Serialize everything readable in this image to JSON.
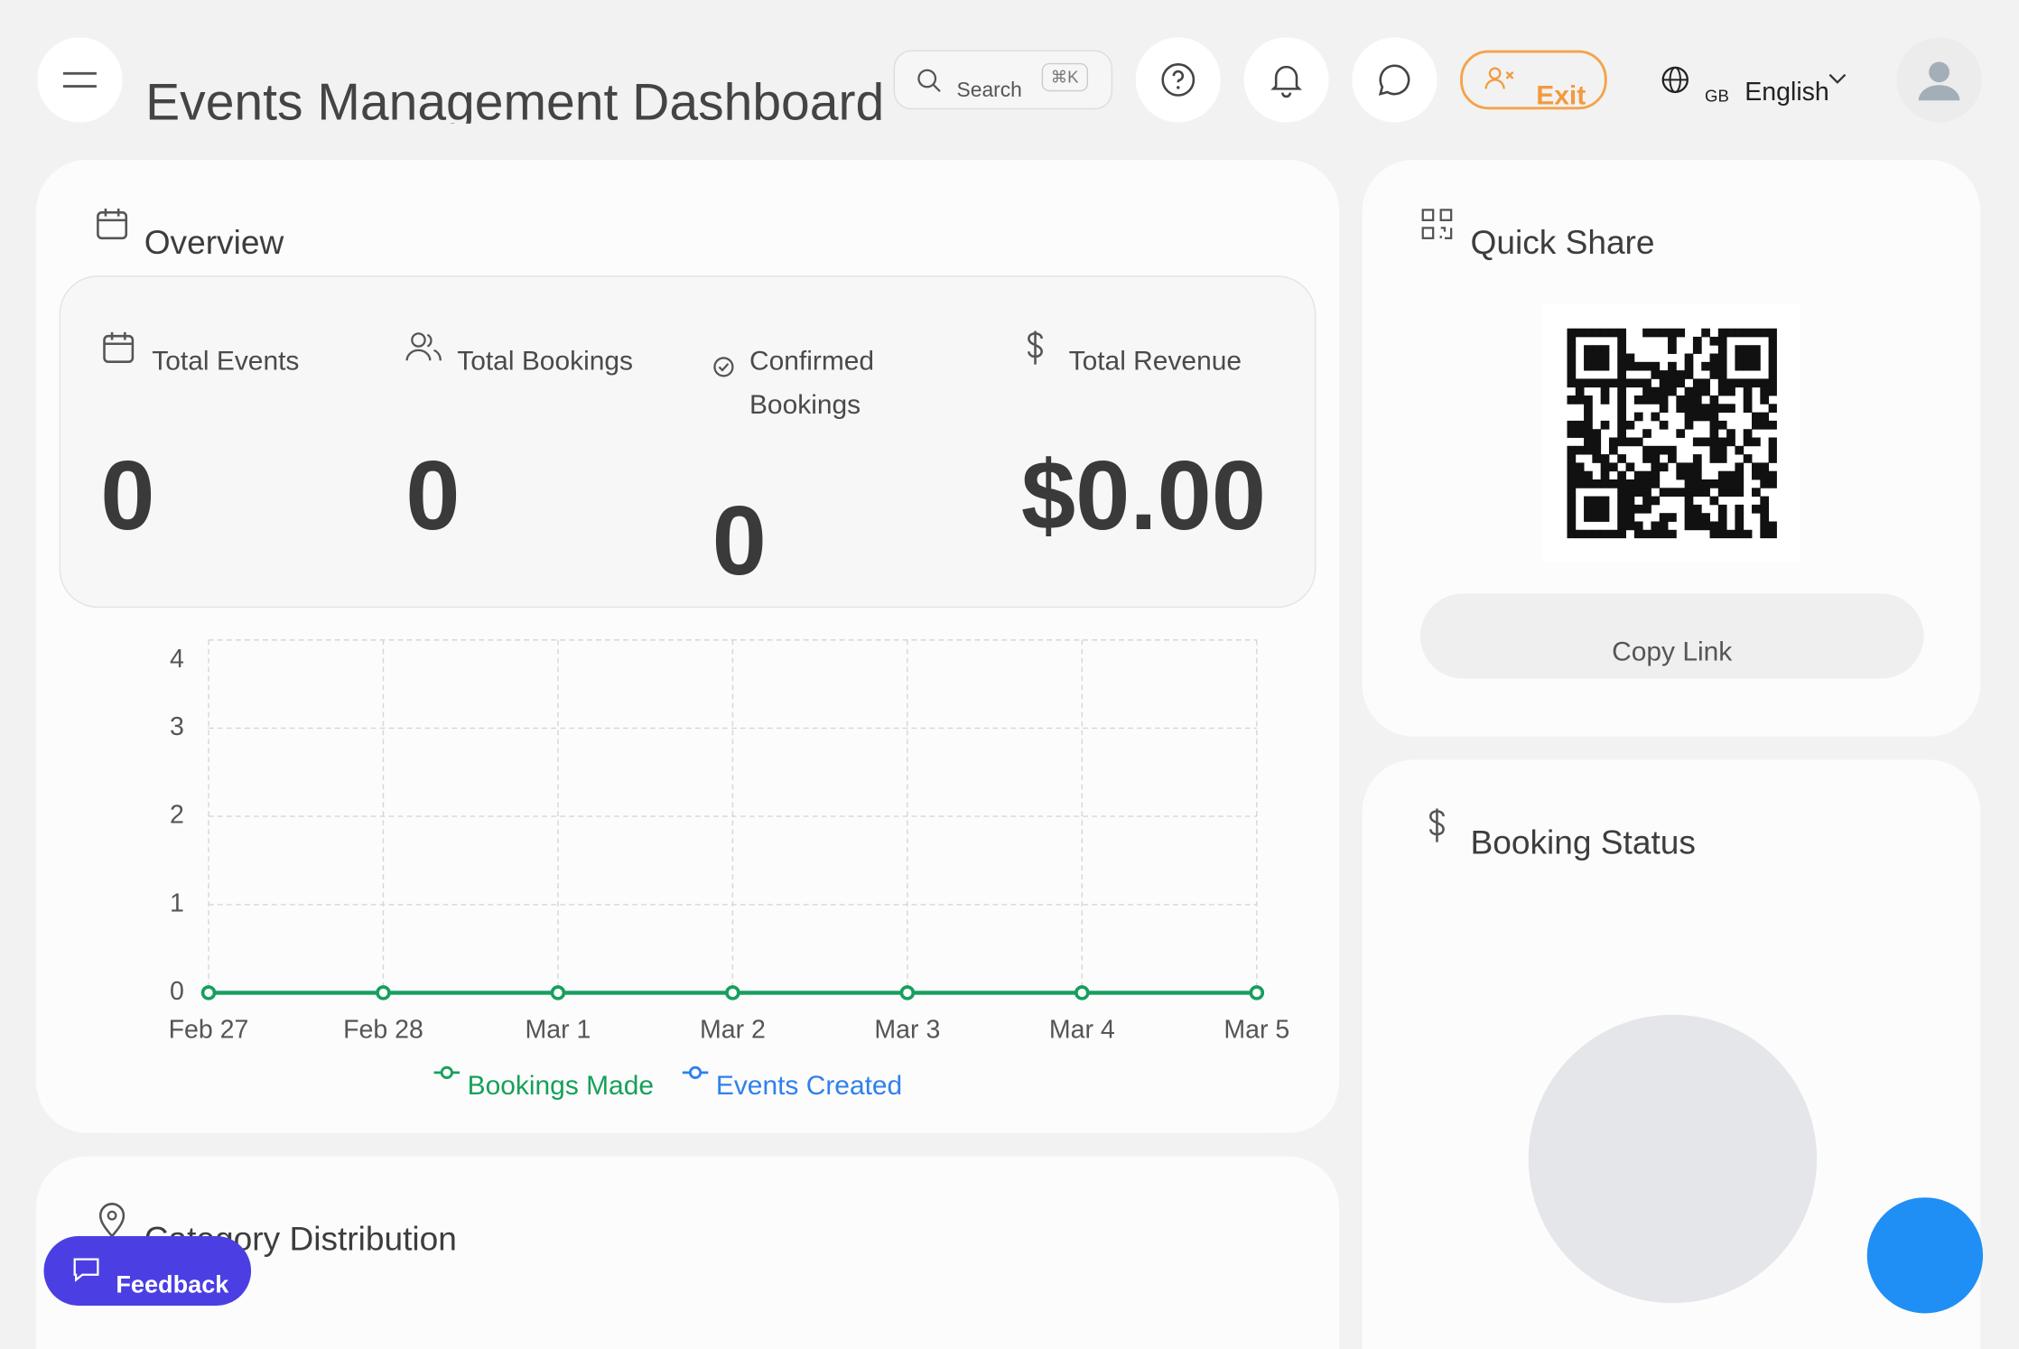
{
  "header": {
    "title": "Events Management Dashboard",
    "search": "Search",
    "shortcut": "⌘K",
    "exit": "Exit",
    "region": "GB",
    "language": "English"
  },
  "overview": {
    "title": "Overview",
    "stats": [
      {
        "label": "Total Events",
        "value": "0"
      },
      {
        "label": "Total Bookings",
        "value": "0"
      },
      {
        "label": "Confirmed Bookings",
        "value": "0"
      },
      {
        "label": "Total Revenue",
        "value": "$0.00"
      }
    ]
  },
  "chart_data": {
    "type": "line",
    "categories": [
      "Feb 27",
      "Feb 28",
      "Mar 1",
      "Mar 2",
      "Mar 3",
      "Mar 4",
      "Mar 5"
    ],
    "series": [
      {
        "name": "Bookings Made",
        "color": "#16a05a",
        "values": [
          0,
          0,
          0,
          0,
          0,
          0,
          0
        ]
      },
      {
        "name": "Events Created",
        "color": "#2f80ed",
        "values": [
          0,
          0,
          0,
          0,
          0,
          0,
          0
        ]
      }
    ],
    "ylim": [
      0,
      4
    ],
    "yticks": [
      0,
      1,
      2,
      3,
      4
    ],
    "grid": true
  },
  "quick_share": {
    "title": "Quick Share",
    "button": "Copy Link"
  },
  "booking_status": {
    "title": "Booking Status"
  },
  "category_distribution": {
    "title": "Category Distribution"
  },
  "feedback": {
    "label": "Feedback"
  }
}
